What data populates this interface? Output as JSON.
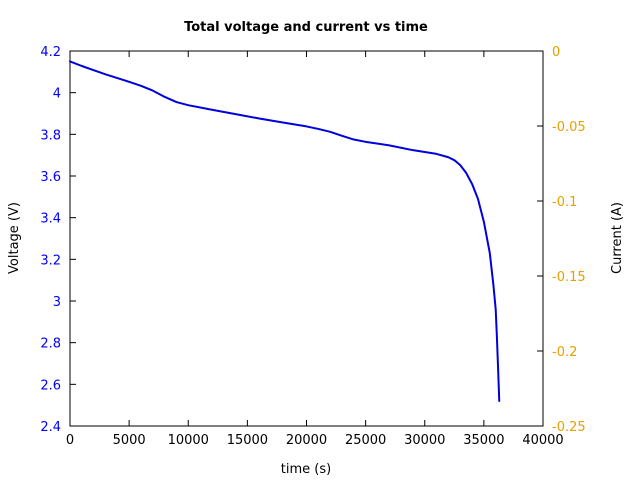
{
  "chart_data": {
    "type": "line",
    "title": "Total voltage and current vs time",
    "xlabel": "time (s)",
    "ylabel_left": "Voltage (V)",
    "ylabel_right": "Current (A)",
    "xlim": [
      0,
      40000
    ],
    "ylim_left": [
      2.4,
      4.2
    ],
    "ylim_right": [
      -0.25,
      0
    ],
    "x_ticks": [
      "0",
      "5000",
      "10000",
      "15000",
      "20000",
      "25000",
      "30000",
      "35000",
      "40000"
    ],
    "y_left_ticks": [
      "2.4",
      "2.6",
      "2.8",
      "3",
      "3.2",
      "3.4",
      "3.6",
      "3.8",
      "4",
      "4.2"
    ],
    "y_right_ticks": [
      "-0.25",
      "-0.2",
      "-0.15",
      "-0.1",
      "-0.05",
      "0"
    ],
    "grid": false,
    "colors": {
      "left_axis": "#0000ff",
      "right_axis": "#e6a000",
      "voltage": "#0000dd"
    },
    "series": [
      {
        "axis": "left",
        "x": [
          0,
          1000,
          2000,
          3000,
          4000,
          5000,
          6000,
          7000,
          8000,
          9000,
          10000,
          12000,
          14000,
          16000,
          18000,
          20000,
          21000,
          22000,
          23000,
          24000,
          25000,
          27000,
          29000,
          31000,
          32000,
          32500,
          33000,
          33500,
          34000,
          34500,
          35000,
          35500,
          35800,
          36000,
          36100,
          36200,
          36300
        ],
        "values": [
          4.15,
          4.128,
          4.108,
          4.088,
          4.07,
          4.052,
          4.033,
          4.01,
          3.98,
          3.955,
          3.94,
          3.918,
          3.897,
          3.876,
          3.857,
          3.838,
          3.826,
          3.812,
          3.793,
          3.775,
          3.764,
          3.747,
          3.724,
          3.706,
          3.69,
          3.676,
          3.652,
          3.615,
          3.562,
          3.49,
          3.38,
          3.23,
          3.08,
          2.96,
          2.83,
          2.68,
          2.52
        ]
      }
    ]
  }
}
